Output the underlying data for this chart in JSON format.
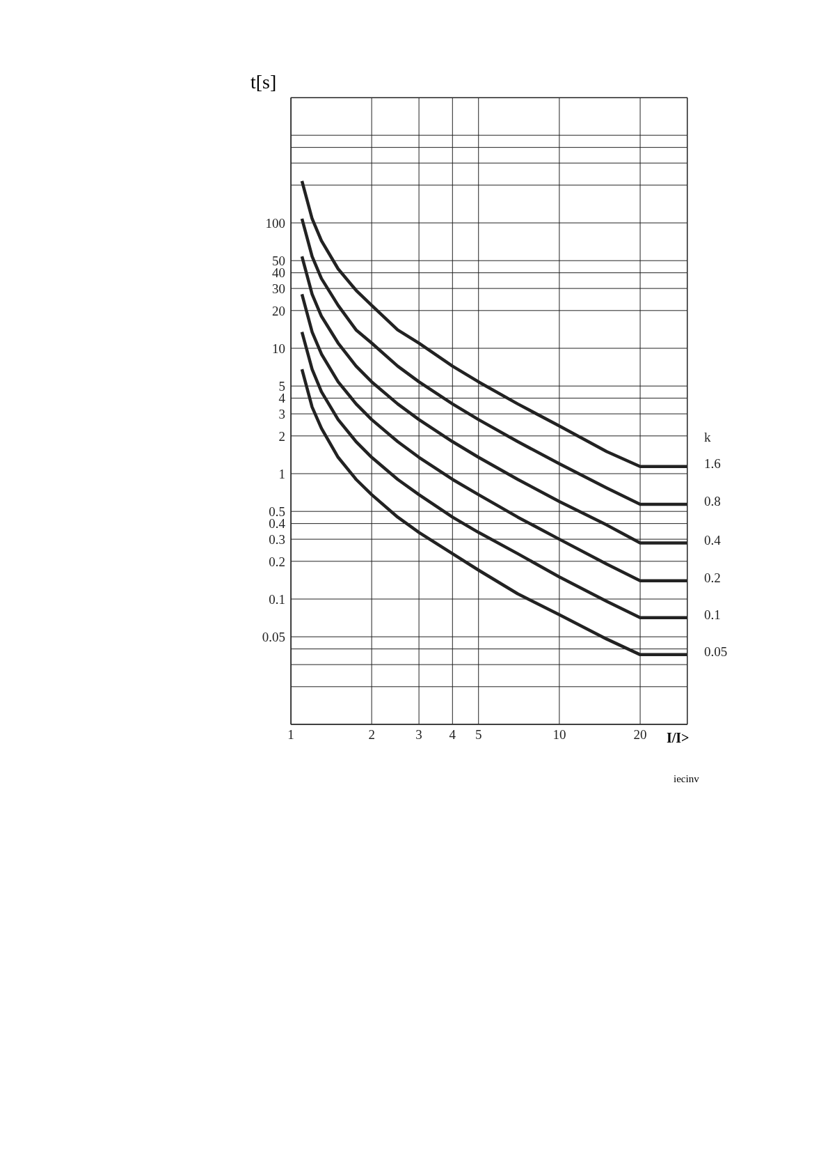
{
  "chart_data": {
    "type": "line",
    "ylabel": "t[s]",
    "xlabel": "I/I>",
    "legend_title": "k",
    "annotations": [
      "iecinv"
    ],
    "x": [
      1.1,
      1.2,
      1.3,
      1.5,
      1.75,
      2,
      2.5,
      3,
      4,
      5,
      7,
      10,
      15,
      20,
      30
    ],
    "series": [
      {
        "name": "1.6",
        "color": "#222222",
        "values": [
          216,
          108,
          72,
          43,
          29,
          22,
          14,
          11,
          7.2,
          5.4,
          3.6,
          2.4,
          1.5,
          1.14,
          1.14
        ]
      },
      {
        "name": "0.8",
        "color": "#222222",
        "values": [
          108,
          54,
          36,
          22,
          14,
          11,
          7.2,
          5.4,
          3.6,
          2.7,
          1.8,
          1.2,
          0.77,
          0.57,
          0.57
        ]
      },
      {
        "name": "0.4",
        "color": "#222222",
        "values": [
          54,
          27,
          18,
          11,
          7.2,
          5.4,
          3.6,
          2.7,
          1.8,
          1.35,
          0.9,
          0.6,
          0.39,
          0.28,
          0.28
        ]
      },
      {
        "name": "0.2",
        "color": "#222222",
        "values": [
          27,
          13.5,
          9,
          5.4,
          3.6,
          2.7,
          1.8,
          1.35,
          0.9,
          0.68,
          0.45,
          0.3,
          0.19,
          0.14,
          0.14
        ]
      },
      {
        "name": "0.1",
        "color": "#222222",
        "values": [
          13.5,
          6.8,
          4.5,
          2.7,
          1.8,
          1.35,
          0.9,
          0.68,
          0.45,
          0.34,
          0.23,
          0.15,
          0.096,
          0.071,
          0.071
        ]
      },
      {
        "name": "0.05",
        "color": "#222222",
        "values": [
          6.8,
          3.4,
          2.3,
          1.35,
          0.9,
          0.68,
          0.45,
          0.34,
          0.23,
          0.17,
          0.11,
          0.075,
          0.048,
          0.036,
          0.036
        ]
      }
    ],
    "log": "xy",
    "xlim": [
      1,
      30
    ],
    "ylim": [
      0.01,
      1000
    ],
    "xticks": [
      1,
      2,
      3,
      4,
      5,
      10,
      20
    ],
    "yticks": [
      {
        "value": 500,
        "label": null
      },
      {
        "value": 400,
        "label": null
      },
      {
        "value": 300,
        "label": null
      },
      {
        "value": 200,
        "label": null
      },
      100,
      50,
      40,
      30,
      20,
      10,
      5,
      4,
      3,
      2,
      1,
      0.5,
      0.4,
      0.3,
      0.2,
      0.1,
      0.05,
      {
        "value": 0.04,
        "label": null
      },
      {
        "value": 0.03,
        "label": null
      },
      {
        "value": 0.02,
        "label": null
      }
    ],
    "grid": true,
    "marker": "none",
    "line_style": "solid"
  }
}
